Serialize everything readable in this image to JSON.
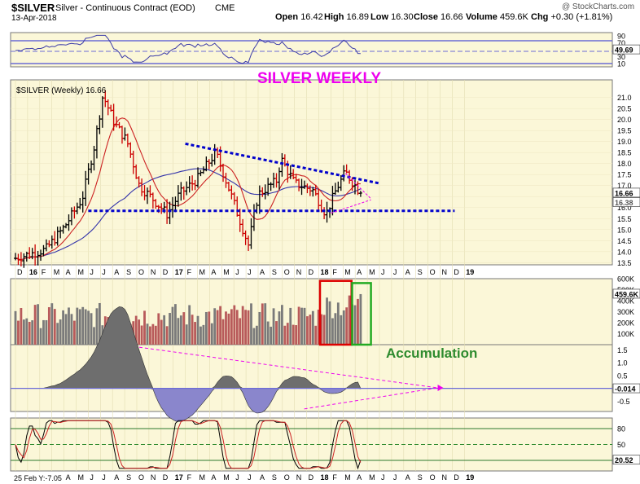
{
  "header": {
    "symbol": "$SILVER",
    "name": "Silver - Continuous Contract (EOD)",
    "exchange": "CME",
    "date": "13-Apr-2018",
    "watermark": "@ StockCharts.com",
    "quote": {
      "open_label": "Open",
      "open": "16.42",
      "high_label": "High",
      "high": "16.89",
      "low_label": "Low",
      "low": "16.30",
      "close_label": "Close",
      "close": "16.66",
      "volume_label": "Volume",
      "volume": "459.6K",
      "chg_label": "Chg",
      "chg": "+0.30 (+1.81%)"
    }
  },
  "colors": {
    "panel_bg": "#fbf7d8",
    "frame": "#6b6bd6",
    "up_bar": "#000000",
    "down_bar": "#cc0000",
    "ma_short": "#cc2222",
    "ma_long": "#3333aa",
    "trendline": "#0000cc",
    "annotation_magenta": "#ee00ee",
    "accumulation_green": "#2e8b2e",
    "box_red": "#dd0000",
    "box_green": "#22aa22",
    "vol_down": "#b85a5a",
    "vol_up": "#7a7a7a",
    "osc_pos": "#6e6e6e",
    "osc_neg": "#8a86cc"
  },
  "chart_data": {
    "price": {
      "type": "ohlc",
      "title": "SILVER WEEKLY",
      "legend": "$SILVER (Weekly) 16.66",
      "ylim": [
        13.4,
        21.8
      ],
      "yticks": [
        "13.5",
        "14.0",
        "14.5",
        "15.0",
        "15.5",
        "16.0",
        "16.5",
        "17.0",
        "17.5",
        "18.0",
        "18.5",
        "19.0",
        "19.5",
        "20.0",
        "20.5",
        "21.0"
      ],
      "last_price_tag": "16.66",
      "overlap_tag": "16.38",
      "key_points": [
        {
          "date": "Dec 2015",
          "price": 13.7
        },
        {
          "date": "Jul 2016",
          "price": 21.1
        },
        {
          "date": "Dec 2016",
          "price": 15.7
        },
        {
          "date": "Apr 2017",
          "price": 18.5
        },
        {
          "date": "Jul 2017",
          "price": 14.3
        },
        {
          "date": "Sep 2017",
          "price": 18.2
        },
        {
          "date": "Dec 2017",
          "price": 15.7
        },
        {
          "date": "Jan 2018",
          "price": 17.6
        },
        {
          "date": "Apr 2018",
          "price": 16.66
        }
      ],
      "upper_trendline": [
        {
          "date": "Feb 2017",
          "price": 18.9
        },
        {
          "date": "Jun 2018",
          "price": 17.1
        }
      ],
      "lower_trendline": {
        "price": 15.85
      }
    },
    "rsi": {
      "type": "line",
      "ylim": [
        0,
        100
      ],
      "yticks": [
        "10",
        "30",
        "50",
        "70",
        "90"
      ],
      "value_tag": "49.69"
    },
    "volume": {
      "type": "bar",
      "ylim": [
        0,
        600000
      ],
      "yticks": [
        "100K",
        "200K",
        "300K",
        "400K",
        "500K",
        "600K"
      ],
      "value_tag": "459.6K",
      "annotation": "Accumulation"
    },
    "macd_hist": {
      "type": "area",
      "ylim": [
        -0.9,
        1.7
      ],
      "yticks": [
        "1.5",
        "1.0",
        "0.5",
        "-0.5"
      ],
      "value_tag": "-0.014"
    },
    "stochastic": {
      "type": "line",
      "ylim": [
        0,
        100
      ],
      "yticks": [
        "80",
        "50",
        "20"
      ],
      "value_tag": "20.52"
    },
    "x_axis": {
      "labels": [
        "D",
        "16",
        "F",
        "M",
        "A",
        "M",
        "J",
        "J",
        "A",
        "S",
        "O",
        "N",
        "D",
        "17",
        "F",
        "M",
        "A",
        "M",
        "J",
        "J",
        "A",
        "S",
        "O",
        "N",
        "D",
        "18",
        "F",
        "M",
        "A",
        "M",
        "J",
        "J",
        "A",
        "S",
        "O",
        "N",
        "D",
        "19"
      ],
      "bold_labels": [
        "16",
        "17",
        "18",
        "19"
      ]
    },
    "footer_label": "25 Feb Y:-7.05"
  }
}
